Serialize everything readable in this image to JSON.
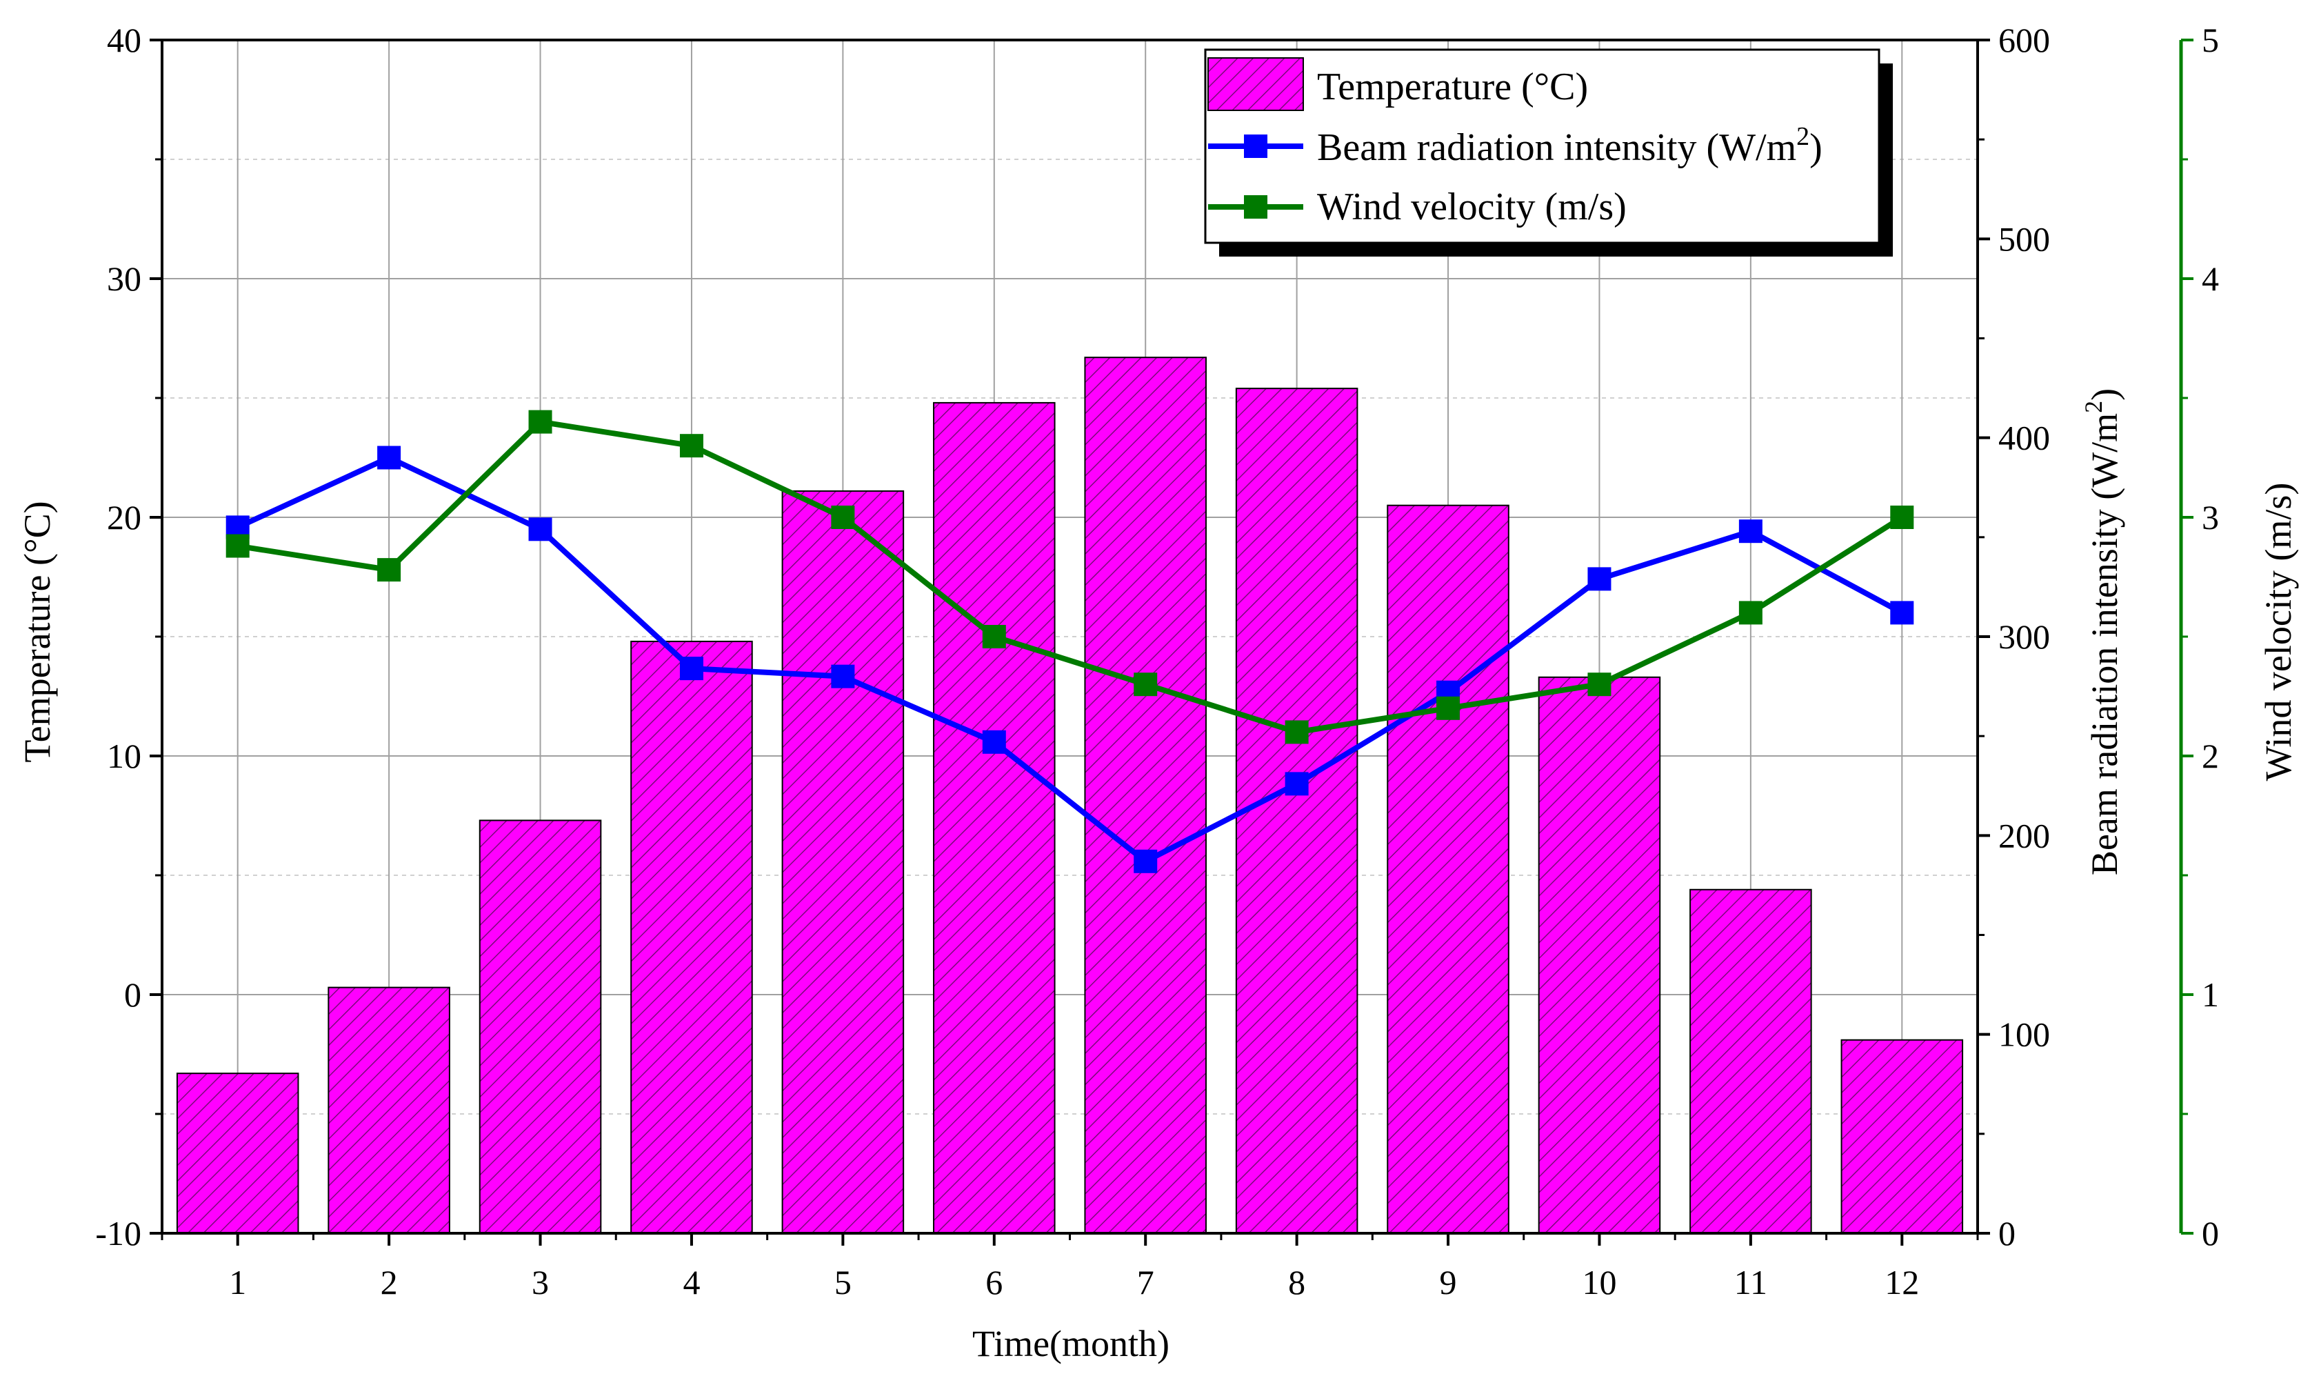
{
  "chart_data": {
    "type": "bar",
    "xlabel": "Time(month)",
    "categories": [
      "1",
      "2",
      "3",
      "4",
      "5",
      "6",
      "7",
      "8",
      "9",
      "10",
      "11",
      "12"
    ],
    "series": [
      {
        "name": "Temperature (°C)",
        "type": "bar",
        "axis": "left",
        "values": [
          -3.3,
          0.3,
          7.3,
          14.8,
          21.1,
          24.8,
          26.7,
          25.4,
          20.5,
          13.3,
          4.4,
          -1.9
        ]
      },
      {
        "name": "Beam radiation intensity (W/m²)",
        "type": "line",
        "axis": "right1",
        "values": [
          355,
          390,
          354,
          284,
          280,
          247,
          187,
          226,
          272,
          329,
          353,
          312
        ]
      },
      {
        "name": "Wind velocity (m/s)",
        "type": "line",
        "axis": "right2",
        "values": [
          2.88,
          2.78,
          3.4,
          3.3,
          3.0,
          2.5,
          2.3,
          2.1,
          2.2,
          2.3,
          2.6,
          3.0
        ]
      }
    ],
    "axes": {
      "left": {
        "label": "Temperature (°C)",
        "ylim": [
          -10,
          40
        ],
        "ticks": [
          "-10",
          "0",
          "10",
          "20",
          "30",
          "40"
        ]
      },
      "right1": {
        "label_main": "Beam radiation intensity (W/m",
        "label_sup": "2",
        "label_end": ")",
        "ylim": [
          0,
          600
        ],
        "ticks": [
          "0",
          "100",
          "200",
          "300",
          "400",
          "500",
          "600"
        ]
      },
      "right2": {
        "label": "Wind velocity (m/s)",
        "ylim": [
          0,
          5
        ],
        "ticks": [
          "0",
          "1",
          "2",
          "3",
          "4",
          "5"
        ]
      }
    },
    "legend": {
      "placement": "top-right",
      "items": [
        {
          "main": "Temperature (°C)",
          "sup": "",
          "end": ""
        },
        {
          "main": "Beam radiation intensity (W/m",
          "sup": "2",
          "end": ")"
        },
        {
          "main": "Wind velocity (m/s)",
          "sup": "",
          "end": ""
        }
      ]
    },
    "colors": {
      "bar_fill": "#ff00ff",
      "bar_hatch": "#7a0a7a",
      "radiation": "#0000ff",
      "wind": "#007a00",
      "wind_axis": "#008000",
      "grid": "#a0a0a0",
      "grid_minor": "#d0d0d0"
    },
    "grid": true
  }
}
